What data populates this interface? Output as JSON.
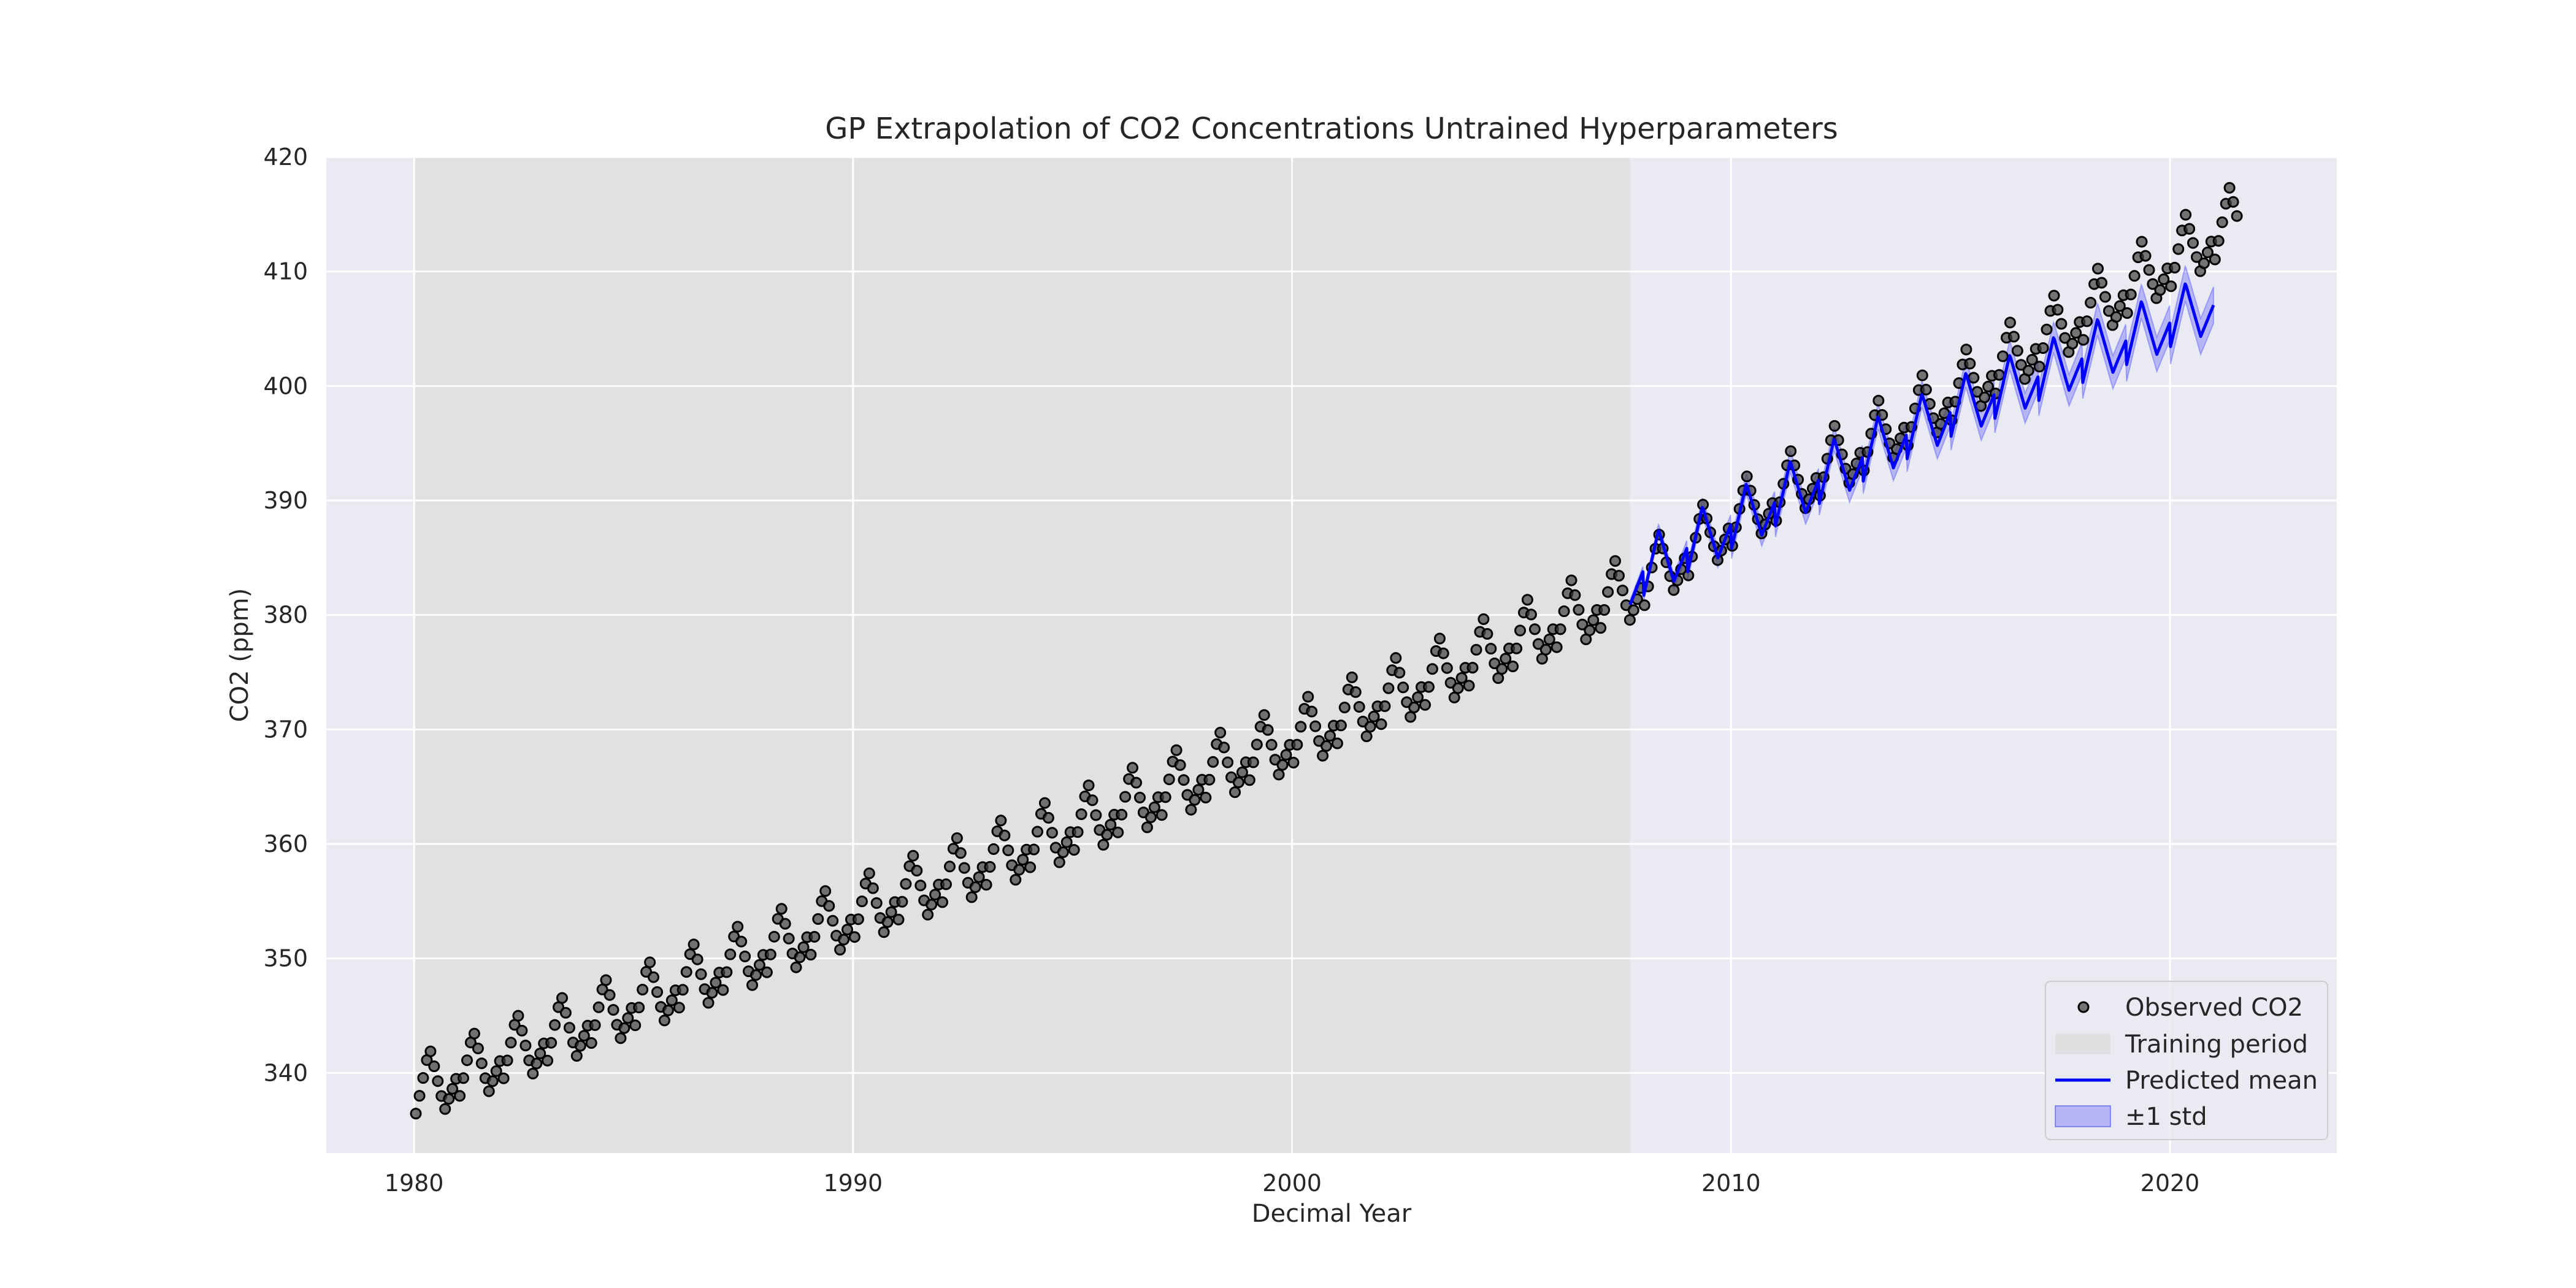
{
  "chart_data": {
    "type": "scatter",
    "title": "GP Extrapolation of CO2 Concentrations Untrained Hyperparameters",
    "xlabel": "Decimal Year",
    "ylabel": "CO2 (ppm)",
    "xlim": [
      1978,
      2023.8
    ],
    "ylim": [
      333,
      420
    ],
    "xticks": [
      1980,
      1990,
      2000,
      2010,
      2020
    ],
    "yticks": [
      340,
      350,
      360,
      370,
      380,
      390,
      400,
      410,
      420
    ],
    "grid": true,
    "legend_position": "lower-right",
    "colors": {
      "plot_background": "#eaeaf2",
      "training_shade": "#d9d9d9",
      "observed_points": "#404040",
      "predicted_mean": "#0000ff",
      "std_band": "#0000ff"
    },
    "training_period": [
      1980.0,
      2007.7
    ],
    "observed_model": {
      "x_start": 1980.04,
      "x_end": 2021.6,
      "step": 0.0833,
      "trend": [
        [
          1980,
          338.7
        ],
        [
          1990,
          354.2
        ],
        [
          2000,
          369.5
        ],
        [
          2007.7,
          382.5
        ],
        [
          2010,
          388.5
        ],
        [
          2015,
          399.5
        ],
        [
          2021.6,
          415.0
        ]
      ],
      "seasonal_amplitude": 3.0
    },
    "prediction_model": {
      "x_start": 2007.7,
      "x_end": 2021.0,
      "trend": [
        [
          2007.7,
          383.5
        ],
        [
          2010,
          388.2
        ],
        [
          2015,
          398.0
        ],
        [
          2021.0,
          407.4
        ]
      ],
      "seasonal_amplitude": 2.6,
      "std": [
        [
          2007.7,
          0.4
        ],
        [
          2010,
          0.9
        ],
        [
          2015,
          1.2
        ],
        [
          2021.0,
          1.6
        ]
      ]
    },
    "legend": [
      {
        "label": "Observed CO2",
        "kind": "marker"
      },
      {
        "label": "Training period",
        "kind": "patch-gray"
      },
      {
        "label": "Predicted mean",
        "kind": "line"
      },
      {
        "label": "±1 std",
        "kind": "patch-blue"
      }
    ]
  }
}
